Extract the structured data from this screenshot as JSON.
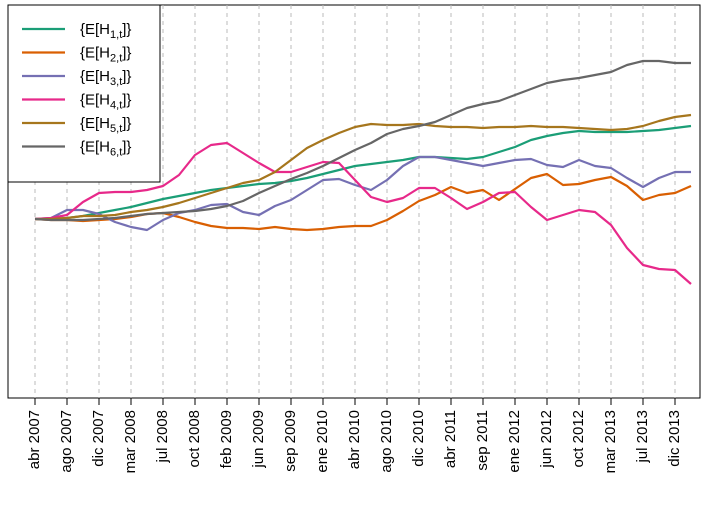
{
  "chart_data": {
    "type": "line",
    "categories": [
      "abr 2007",
      null,
      "ago 2007",
      null,
      "dic 2007",
      null,
      "mar 2008",
      null,
      "jul 2008",
      null,
      "oct 2008",
      null,
      "feb 2009",
      null,
      "jun 2009",
      null,
      "sep 2009",
      null,
      "ene 2010",
      null,
      "abr 2010",
      null,
      "ago 2010",
      null,
      "dic 2010",
      null,
      "abr 2011",
      null,
      "sep 2011",
      null,
      "ene 2012",
      null,
      "jun 2012",
      null,
      "oct 2012",
      null,
      "mar 2013",
      null,
      "jul 2013",
      null,
      "dic 2013",
      null
    ],
    "ylim": [
      0,
      393
    ],
    "grid": true,
    "legend": "topleft",
    "series": [
      {
        "name": "{E[H1,t]}",
        "color": "#1b9e77",
        "values": [
          179,
          179,
          180,
          182,
          185,
          188,
          191,
          195,
          199,
          202,
          205,
          208,
          210,
          212,
          214,
          215,
          217,
          220,
          224,
          228,
          232,
          234,
          236,
          238,
          241,
          241,
          240,
          239,
          241,
          246,
          251,
          258,
          262,
          265,
          267,
          266,
          266,
          266,
          267,
          268,
          270,
          272
        ]
      },
      {
        "name": "{E[H2,t]}",
        "color": "#d95f02",
        "values": [
          179,
          178,
          178,
          177,
          178,
          179,
          181,
          184,
          185,
          181,
          176,
          172,
          170,
          170,
          169,
          171,
          169,
          168,
          169,
          171,
          172,
          172,
          178,
          187,
          197,
          203,
          211,
          205,
          208,
          198,
          209,
          220,
          224,
          213,
          214,
          218,
          221,
          212,
          198,
          203,
          205,
          212
        ]
      },
      {
        "name": "{E[H3,t]}",
        "color": "#7570b3",
        "values": [
          179,
          180,
          188,
          188,
          184,
          176,
          171,
          168,
          178,
          185,
          188,
          193,
          194,
          186,
          183,
          192,
          198,
          208,
          218,
          219,
          213,
          208,
          218,
          232,
          241,
          241,
          238,
          235,
          232,
          235,
          238,
          239,
          233,
          231,
          238,
          232,
          230,
          220,
          211,
          220,
          226,
          226
        ]
      },
      {
        "name": "{E[H4,t]}",
        "color": "#e7298a",
        "values": [
          179,
          180,
          183,
          196,
          205,
          206,
          206,
          208,
          212,
          223,
          243,
          253,
          255,
          245,
          235,
          226,
          226,
          231,
          236,
          235,
          218,
          201,
          196,
          200,
          210,
          210,
          200,
          189,
          196,
          205,
          206,
          191,
          178,
          183,
          188,
          186,
          173,
          150,
          133,
          129,
          128,
          114
        ]
      },
      {
        "name": "{E[H5,t]}",
        "color": "#a6761d",
        "values": [
          179,
          179,
          180,
          182,
          182,
          183,
          186,
          188,
          191,
          195,
          200,
          205,
          210,
          215,
          218,
          226,
          238,
          250,
          258,
          265,
          271,
          274,
          273,
          273,
          274,
          272,
          271,
          271,
          270,
          271,
          271,
          272,
          271,
          271,
          270,
          269,
          268,
          269,
          272,
          277,
          281,
          283
        ]
      },
      {
        "name": "{E[H6,t]}",
        "color": "#666666",
        "values": [
          179,
          178,
          178,
          178,
          179,
          180,
          182,
          184,
          185,
          186,
          187,
          189,
          192,
          197,
          205,
          212,
          219,
          225,
          232,
          240,
          248,
          255,
          264,
          269,
          272,
          276,
          283,
          290,
          294,
          297,
          303,
          309,
          315,
          318,
          320,
          323,
          326,
          333,
          337,
          337,
          335,
          335
        ]
      }
    ]
  }
}
